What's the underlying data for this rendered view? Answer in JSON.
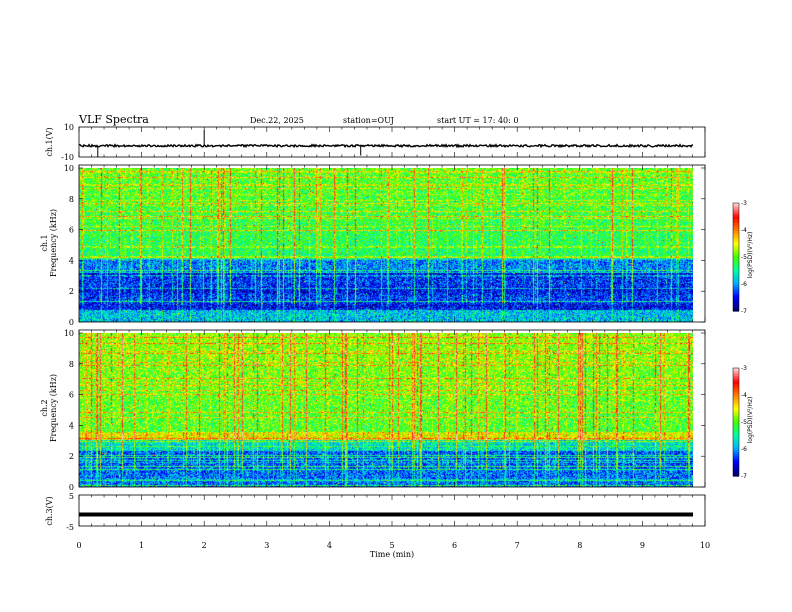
{
  "header": {
    "title": "VLF Spectra",
    "date": "Dec.22, 2025",
    "station": "station=OUJ",
    "start": "start UT = 17: 40: 0"
  },
  "colors": {
    "cmap": [
      "#000070",
      "#0000ff",
      "#00b0ff",
      "#00ffa0",
      "#40ff00",
      "#ffff00",
      "#ff8000",
      "#ff0000",
      "#ffd0d0"
    ],
    "trace": "#000000"
  },
  "chart_data": [
    {
      "type": "line",
      "name": "ch1-waveform",
      "ylabel": "ch.1(V)",
      "ylim": [
        -10,
        10
      ],
      "yticks": [
        "10",
        "-10"
      ],
      "baseline": -2.5,
      "spikes": [
        {
          "t": 0.3,
          "v": -10
        },
        {
          "t": 2.0,
          "v": 8
        },
        {
          "t": 4.5,
          "v": -9
        }
      ]
    },
    {
      "type": "heatmap",
      "name": "ch1-spectrogram",
      "ylabel_top": "ch.1",
      "ylabel": "Frequency (kHz)",
      "ylim": [
        0,
        10
      ],
      "yticks": [
        "0",
        "2",
        "4",
        "6",
        "8",
        "10"
      ],
      "colorbar": {
        "label": "log(PSD)(V²/Hz)",
        "range": [
          -7,
          -3
        ],
        "ticks": [
          "-3",
          "-4",
          "-5",
          "-6",
          "-7"
        ]
      }
    },
    {
      "type": "heatmap",
      "name": "ch2-spectrogram",
      "ylabel_top": "ch.2",
      "ylabel": "Frequency (kHz)",
      "ylim": [
        0,
        10
      ],
      "yticks": [
        "0",
        "2",
        "4",
        "6",
        "8",
        "10"
      ],
      "colorbar": {
        "label": "log(PSD)(V²/Hz)",
        "range": [
          -7,
          -3
        ],
        "ticks": [
          "-3",
          "-4",
          "-5",
          "-6",
          "-7"
        ]
      }
    },
    {
      "type": "line",
      "name": "ch3-waveform",
      "ylabel": "ch.3(V)",
      "ylim": [
        -5,
        5
      ],
      "yticks": [
        "5",
        "-5"
      ],
      "baseline": -1.3
    }
  ],
  "xaxis": {
    "label": "Time (min)",
    "xlim": [
      0,
      10
    ],
    "ticks": [
      "0",
      "1",
      "2",
      "3",
      "4",
      "5",
      "6",
      "7",
      "8",
      "9",
      "10"
    ]
  }
}
